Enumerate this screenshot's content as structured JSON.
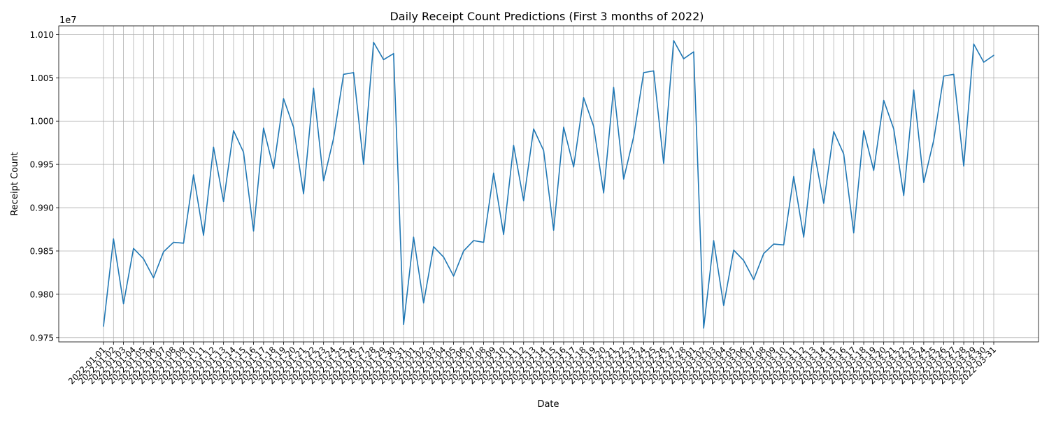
{
  "chart_data": {
    "type": "line",
    "title": "Daily Receipt Count Predictions (First 3 months of 2022)",
    "xlabel": "Date",
    "ylabel": "Receipt Count",
    "y_offset_label": "1e7",
    "ylim": [
      9745000,
      10110000
    ],
    "yticks": [
      9750000,
      9800000,
      9850000,
      9900000,
      9950000,
      10000000,
      10050000,
      10100000
    ],
    "ytick_labels": [
      "0.975",
      "0.980",
      "0.985",
      "0.990",
      "0.995",
      "1.000",
      "1.005",
      "1.010"
    ],
    "grid": true,
    "line_color": "#1f77b4",
    "x": [
      "2022-01-01",
      "2022-01-02",
      "2022-01-03",
      "2022-01-04",
      "2022-01-05",
      "2022-01-06",
      "2022-01-07",
      "2022-01-08",
      "2022-01-09",
      "2022-01-10",
      "2022-01-11",
      "2022-01-12",
      "2022-01-13",
      "2022-01-14",
      "2022-01-15",
      "2022-01-16",
      "2022-01-17",
      "2022-01-18",
      "2022-01-19",
      "2022-01-20",
      "2022-01-21",
      "2022-01-22",
      "2022-01-23",
      "2022-01-24",
      "2022-01-25",
      "2022-01-26",
      "2022-01-27",
      "2022-01-28",
      "2022-01-29",
      "2022-01-30",
      "2022-01-31",
      "2022-02-01",
      "2022-02-02",
      "2022-02-03",
      "2022-02-04",
      "2022-02-05",
      "2022-02-06",
      "2022-02-07",
      "2022-02-08",
      "2022-02-09",
      "2022-02-10",
      "2022-02-11",
      "2022-02-12",
      "2022-02-13",
      "2022-02-14",
      "2022-02-15",
      "2022-02-16",
      "2022-02-17",
      "2022-02-18",
      "2022-02-19",
      "2022-02-20",
      "2022-02-21",
      "2022-02-22",
      "2022-02-23",
      "2022-02-24",
      "2022-02-25",
      "2022-02-26",
      "2022-02-27",
      "2022-02-28",
      "2022-03-01",
      "2022-03-02",
      "2022-03-03",
      "2022-03-04",
      "2022-03-05",
      "2022-03-06",
      "2022-03-07",
      "2022-03-08",
      "2022-03-09",
      "2022-03-10",
      "2022-03-11",
      "2022-03-12",
      "2022-03-13",
      "2022-03-14",
      "2022-03-15",
      "2022-03-16",
      "2022-03-17",
      "2022-03-18",
      "2022-03-19",
      "2022-03-20",
      "2022-03-21",
      "2022-03-22",
      "2022-03-23",
      "2022-03-24",
      "2022-03-25",
      "2022-03-26",
      "2022-03-27",
      "2022-03-28",
      "2022-03-29",
      "2022-03-30",
      "2022-03-31"
    ],
    "series": [
      {
        "values": [
          9763000,
          9864000,
          9789000,
          9853000,
          9841000,
          9819000,
          9849000,
          9860000,
          9859000,
          9938000,
          9868000,
          9970000,
          9907000,
          9989000,
          9964000,
          9873000,
          9992000,
          9945000,
          10026000,
          9993000,
          9916000,
          10038000,
          9931000,
          9980000,
          10054000,
          10056000,
          9950000,
          10091000,
          10071000,
          10078000,
          9765000,
          9866000,
          9790000,
          9855000,
          9843000,
          9821000,
          9850000,
          9862000,
          9860000,
          9940000,
          9869000,
          9972000,
          9908000,
          9991000,
          9966000,
          9874000,
          9993000,
          9947000,
          10027000,
          9994000,
          9917000,
          10039000,
          9933000,
          9982000,
          10056000,
          10058000,
          9951000,
          10093000,
          10072000,
          10080000,
          9761000,
          9862000,
          9787000,
          9851000,
          9839000,
          9817000,
          9847000,
          9858000,
          9857000,
          9936000,
          9866000,
          9968000,
          9905000,
          9988000,
          9962000,
          9871000,
          9989000,
          9943000,
          10024000,
          9991000,
          9914000,
          10036000,
          9929000,
          9978000,
          10052000,
          10054000,
          9948000,
          10089000,
          10068000,
          10076000
        ]
      }
    ]
  }
}
